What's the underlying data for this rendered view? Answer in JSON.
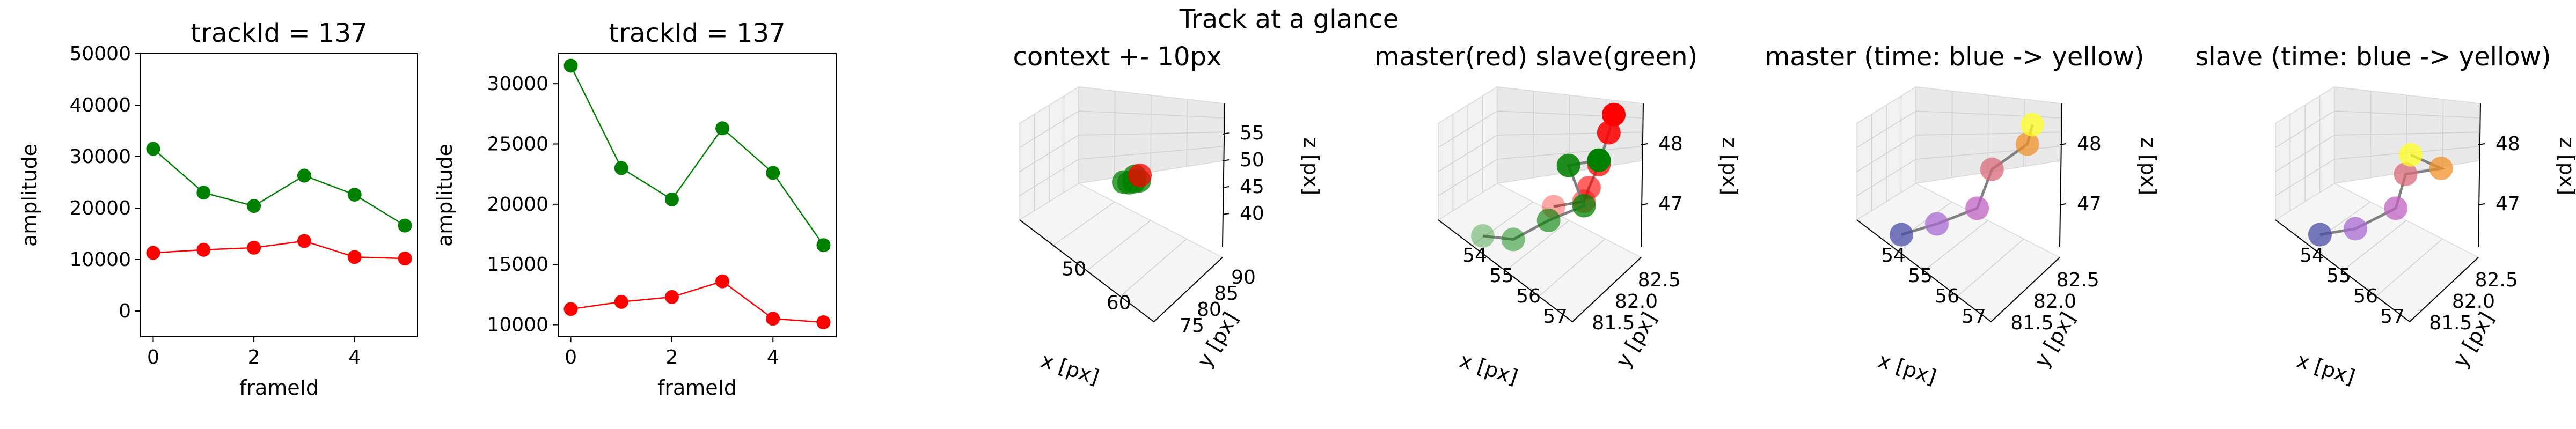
{
  "figure_title": "Track at a glance",
  "colors": {
    "master": "#ff0000",
    "slave": "#008000",
    "frame": "#000000",
    "pane": "#f2f2f2",
    "grid": "#cccccc",
    "connector": "#808080"
  },
  "chart_data": [
    {
      "type": "line",
      "title": "trackId = 137",
      "xlabel": "frameId",
      "ylabel": "amplitude",
      "x": [
        0,
        1,
        2,
        3,
        4,
        5
      ],
      "xlim": [
        -0.25,
        5.25
      ],
      "ylim": [
        -5000,
        50000
      ],
      "xticks": [
        0,
        2,
        4
      ],
      "yticks": [
        0,
        10000,
        20000,
        30000,
        40000,
        50000
      ],
      "series": [
        {
          "color": "#008000",
          "values": [
            31500,
            23000,
            20400,
            26300,
            22600,
            16600
          ]
        },
        {
          "color": "#ff0000",
          "values": [
            11300,
            11900,
            12300,
            13600,
            10500,
            10200
          ]
        }
      ]
    },
    {
      "type": "line",
      "title": "trackId = 137",
      "xlabel": "frameId",
      "ylabel": "amplitude",
      "x": [
        0,
        1,
        2,
        3,
        4,
        5
      ],
      "xlim": [
        -0.25,
        5.25
      ],
      "ylim": [
        9000,
        32500
      ],
      "xticks": [
        0,
        2,
        4
      ],
      "yticks": [
        10000,
        15000,
        20000,
        25000,
        30000
      ],
      "series": [
        {
          "color": "#008000",
          "values": [
            31500,
            23000,
            20400,
            26300,
            22600,
            16600
          ]
        },
        {
          "color": "#ff0000",
          "values": [
            11300,
            11900,
            12300,
            13600,
            10500,
            10200
          ]
        }
      ]
    },
    {
      "type": "scatter3d",
      "title": "context +- 10px",
      "xlabel": "x [px]",
      "ylabel": "y [px]",
      "zlabel": "z [px]",
      "xticks": [
        "50",
        "60"
      ],
      "yticks": [
        "75",
        "80",
        "85",
        "90"
      ],
      "zticks": [
        "40",
        "45",
        "50",
        "55"
      ],
      "points": [
        {
          "color": "#008000",
          "x": 54,
          "y": 81.6,
          "z": 46.6
        },
        {
          "color": "#008000",
          "x": 55,
          "y": 81.8,
          "z": 46.5
        },
        {
          "color": "#008000",
          "x": 56,
          "y": 81.9,
          "z": 46.8
        },
        {
          "color": "#008000",
          "x": 57,
          "y": 82.1,
          "z": 47.0
        },
        {
          "color": "#008000",
          "x": 56,
          "y": 82.2,
          "z": 47.7
        },
        {
          "color": "#ff0000",
          "x": 57,
          "y": 82.3,
          "z": 48.0
        }
      ]
    },
    {
      "type": "scatter3d",
      "title": "master(red) slave(green)",
      "xlabel": "x [px]",
      "ylabel": "y [px]",
      "zlabel": "z [px]",
      "xticks": [
        "54",
        "55",
        "56",
        "57"
      ],
      "yticks": [
        "81.5",
        "82.0",
        "82.5"
      ],
      "zticks": [
        "47",
        "48"
      ],
      "series": [
        {
          "name": "master",
          "color": "#ff0000",
          "points": [
            [
              56,
              81.9,
              47.0
            ],
            [
              57,
              82.0,
              47.1
            ],
            [
              57,
              82.1,
              47.3
            ],
            [
              57,
              82.3,
              47.6
            ],
            [
              57,
              82.5,
              48.1
            ],
            [
              57,
              82.6,
              48.4
            ]
          ]
        },
        {
          "name": "slave",
          "color": "#008000",
          "points": [
            [
              54,
              81.5,
              46.6
            ],
            [
              55,
              81.6,
              46.5
            ],
            [
              56,
              81.8,
              46.8
            ],
            [
              57,
              82.0,
              47.0
            ],
            [
              56,
              82.2,
              47.6
            ],
            [
              57,
              82.3,
              47.7
            ]
          ]
        }
      ]
    },
    {
      "type": "scatter3d",
      "title": "master (time: blue -> yellow)",
      "xlabel": "x [px]",
      "ylabel": "y [px]",
      "zlabel": "z [px]",
      "xticks": [
        "54",
        "55",
        "56",
        "57"
      ],
      "yticks": [
        "81.5",
        "82.0",
        "82.5"
      ],
      "zticks": [
        "47",
        "48"
      ],
      "points": [
        {
          "color": "#4b4ba6",
          "x": 54,
          "y": 81.5,
          "z": 46.9
        },
        {
          "color": "#a86ad0",
          "x": 55,
          "y": 81.7,
          "z": 47.0
        },
        {
          "color": "#c060c0",
          "x": 56,
          "y": 82.0,
          "z": 47.1
        },
        {
          "color": "#d96a7a",
          "x": 56,
          "y": 82.3,
          "z": 47.6
        },
        {
          "color": "#f0902a",
          "x": 57,
          "y": 82.5,
          "z": 48.0
        },
        {
          "color": "#ffff20",
          "x": 57,
          "y": 82.6,
          "z": 48.3
        }
      ]
    },
    {
      "type": "scatter3d",
      "title": "slave (time: blue -> yellow)",
      "xlabel": "x [px]",
      "ylabel": "y [px]",
      "zlabel": "z [px]",
      "xticks": [
        "54",
        "55",
        "56",
        "57"
      ],
      "yticks": [
        "81.5",
        "82.0",
        "82.5"
      ],
      "zticks": [
        "47",
        "48"
      ],
      "points": [
        {
          "color": "#4b4ba6",
          "x": 54,
          "y": 81.5,
          "z": 46.9
        },
        {
          "color": "#a86ad0",
          "x": 55,
          "y": 81.7,
          "z": 46.9
        },
        {
          "color": "#c060c0",
          "x": 56,
          "y": 82.0,
          "z": 47.1
        },
        {
          "color": "#d96a7a",
          "x": 56,
          "y": 82.2,
          "z": 47.6
        },
        {
          "color": "#f0902a",
          "x": 57,
          "y": 82.4,
          "z": 47.6
        },
        {
          "color": "#ffff20",
          "x": 56,
          "y": 82.3,
          "z": 47.9
        }
      ]
    }
  ]
}
